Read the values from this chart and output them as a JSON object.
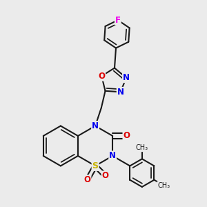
{
  "bg_color": "#ebebeb",
  "bond_color": "#1a1a1a",
  "bond_width": 1.5,
  "atoms": {
    "S": {
      "color": "#c8b400"
    },
    "N": {
      "color": "#0000ee"
    },
    "O": {
      "color": "#dd0000"
    },
    "F": {
      "color": "#ee00ee"
    },
    "C": {
      "color": "#1a1a1a"
    }
  },
  "figsize": [
    3.0,
    3.0
  ],
  "dpi": 100
}
